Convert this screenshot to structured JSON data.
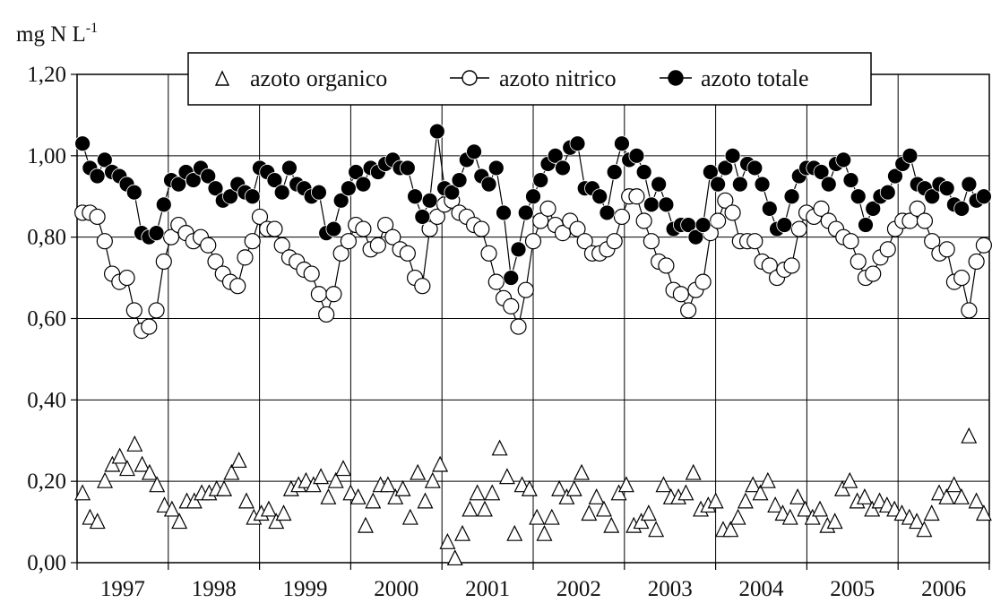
{
  "chart_data": {
    "type": "scatter",
    "title": "",
    "y_unit_base": "mg N L",
    "y_unit_exp": "-1",
    "xlabel": "",
    "ylim": [
      0,
      1.2
    ],
    "xlim": [
      1996.95,
      2006.95
    ],
    "y_ticks": [
      0.0,
      0.2,
      0.4,
      0.6,
      0.8,
      1.0,
      1.2
    ],
    "y_tick_labels": [
      "0,00",
      "0,20",
      "0,40",
      "0,60",
      "0,80",
      "1,00",
      "1,20"
    ],
    "x_tick_labels": [
      "1997",
      "1998",
      "1999",
      "2000",
      "2001",
      "2002",
      "2003",
      "2004",
      "2005",
      "2006"
    ],
    "grid": true,
    "legend_placement": "top",
    "series": [
      {
        "name": "azoto organico",
        "marker": "open-triangle",
        "line": false,
        "values": [
          0.17,
          0.11,
          0.1,
          0.2,
          0.24,
          0.26,
          0.23,
          0.29,
          0.24,
          0.22,
          0.19,
          0.14,
          0.13,
          0.1,
          0.15,
          0.15,
          0.17,
          0.17,
          0.18,
          0.18,
          0.22,
          0.25,
          0.15,
          0.11,
          0.12,
          0.13,
          0.1,
          0.12,
          0.18,
          0.19,
          0.2,
          0.19,
          0.21,
          0.16,
          0.2,
          0.23,
          0.17,
          0.16,
          0.09,
          0.15,
          0.19,
          0.19,
          0.16,
          0.18,
          0.11,
          0.22,
          0.15,
          0.2,
          0.24,
          0.05,
          0.01,
          0.07,
          0.13,
          0.17,
          0.13,
          0.17,
          0.28,
          0.21,
          0.07,
          0.19,
          0.18,
          0.11,
          0.07,
          0.11,
          0.18,
          0.16,
          0.18,
          0.22,
          0.12,
          0.16,
          0.13,
          0.09,
          0.17,
          0.19,
          0.09,
          0.1,
          0.12,
          0.08,
          0.19,
          0.16,
          0.16,
          0.17,
          0.22,
          0.13,
          0.14,
          0.15,
          0.08,
          0.08,
          0.11,
          0.15,
          0.19,
          0.17,
          0.2,
          0.14,
          0.12,
          0.11,
          0.16,
          0.13,
          0.11,
          0.13,
          0.09,
          0.1,
          0.18,
          0.2,
          0.15,
          0.16,
          0.13,
          0.15,
          0.14,
          0.13,
          0.12,
          0.11,
          0.1,
          0.08,
          0.12,
          0.17,
          0.16,
          0.19,
          0.16,
          0.31,
          0.15,
          0.12
        ]
      },
      {
        "name": "azoto nitrico",
        "marker": "open-circle",
        "line": true,
        "values": [
          0.86,
          0.86,
          0.85,
          0.79,
          0.71,
          0.69,
          0.7,
          0.62,
          0.57,
          0.58,
          0.62,
          0.74,
          0.8,
          0.83,
          0.81,
          0.79,
          0.8,
          0.78,
          0.74,
          0.71,
          0.69,
          0.68,
          0.75,
          0.79,
          0.85,
          0.82,
          0.82,
          0.78,
          0.75,
          0.74,
          0.72,
          0.71,
          0.66,
          0.61,
          0.66,
          0.76,
          0.79,
          0.83,
          0.82,
          0.77,
          0.78,
          0.83,
          0.8,
          0.77,
          0.76,
          0.7,
          0.68,
          0.82,
          0.85,
          0.88,
          0.89,
          0.86,
          0.85,
          0.83,
          0.82,
          0.76,
          0.69,
          0.65,
          0.63,
          0.58,
          0.67,
          0.79,
          0.84,
          0.87,
          0.83,
          0.81,
          0.84,
          0.82,
          0.79,
          0.76,
          0.76,
          0.77,
          0.79,
          0.85,
          0.9,
          0.9,
          0.84,
          0.79,
          0.74,
          0.73,
          0.67,
          0.66,
          0.62,
          0.67,
          0.69,
          0.81,
          0.84,
          0.89,
          0.86,
          0.79,
          0.79,
          0.79,
          0.74,
          0.73,
          0.7,
          0.72,
          0.73,
          0.82,
          0.86,
          0.85,
          0.87,
          0.84,
          0.82,
          0.8,
          0.79,
          0.74,
          0.7,
          0.71,
          0.75,
          0.77,
          0.82,
          0.84,
          0.84,
          0.87,
          0.84,
          0.79,
          0.76,
          0.77,
          0.69,
          0.7,
          0.62,
          0.74,
          0.78
        ]
      },
      {
        "name": "azoto totale",
        "marker": "filled-circle",
        "line": true,
        "values": [
          1.03,
          0.97,
          0.95,
          0.99,
          0.96,
          0.95,
          0.93,
          0.91,
          0.81,
          0.8,
          0.81,
          0.88,
          0.94,
          0.93,
          0.96,
          0.94,
          0.97,
          0.95,
          0.92,
          0.89,
          0.9,
          0.93,
          0.91,
          0.9,
          0.97,
          0.96,
          0.94,
          0.91,
          0.97,
          0.93,
          0.92,
          0.9,
          0.91,
          0.81,
          0.82,
          0.89,
          0.92,
          0.96,
          0.93,
          0.97,
          0.96,
          0.98,
          0.99,
          0.97,
          0.97,
          0.9,
          0.85,
          0.89,
          1.06,
          0.92,
          0.91,
          0.94,
          0.99,
          1.01,
          0.95,
          0.93,
          0.97,
          0.86,
          0.7,
          0.77,
          0.86,
          0.9,
          0.94,
          0.98,
          1.0,
          0.97,
          1.02,
          1.03,
          0.92,
          0.92,
          0.9,
          0.86,
          0.96,
          1.03,
          0.99,
          1.0,
          0.96,
          0.88,
          0.93,
          0.88,
          0.82,
          0.83,
          0.83,
          0.8,
          0.83,
          0.96,
          0.93,
          0.97,
          1.0,
          0.93,
          0.98,
          0.97,
          0.93,
          0.87,
          0.82,
          0.83,
          0.9,
          0.95,
          0.97,
          0.97,
          0.96,
          0.93,
          0.98,
          0.99,
          0.94,
          0.9,
          0.83,
          0.87,
          0.9,
          0.91,
          0.95,
          0.98,
          1.0,
          0.93,
          0.92,
          0.9,
          0.93,
          0.92,
          0.88,
          0.87,
          0.93,
          0.89,
          0.9
        ]
      }
    ]
  }
}
